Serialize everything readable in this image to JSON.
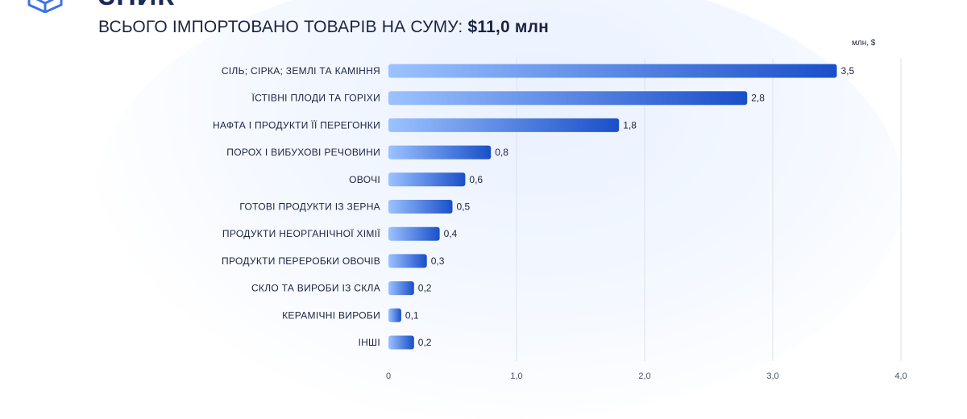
{
  "header": {
    "brand_fragment": "ЗНИК",
    "subtitle_prefix": "ВСЬОГО ІМПОРТОВАНО ТОВАРІВ НА СУМУ: ",
    "subtitle_amount": "$11,0 млн",
    "unit": "млн, $"
  },
  "colors": {
    "bar_start": "#9cc2ff",
    "bar_end": "#1a4fc9",
    "grid": "#dde3ee"
  },
  "chart_data": {
    "type": "bar",
    "orientation": "horizontal",
    "categories": [
      "СІЛЬ; СІРКА; ЗЕМЛІ ТА КАМІННЯ",
      "ЇСТІВНІ ПЛОДИ ТА ГОРІХИ",
      "НАФТА І ПРОДУКТИ ЇЇ ПЕРЕГОНКИ",
      "ПОРОХ І ВИБУХОВІ РЕЧОВИНИ",
      "ОВОЧІ",
      "ГОТОВІ ПРОДУКТИ ІЗ ЗЕРНА",
      "ПРОДУКТИ НЕОРГАНІЧНОЇ ХІМІЇ",
      "ПРОДУКТИ ПЕРЕРОБКИ ОВОЧІВ",
      "СКЛО ТА ВИРОБИ ІЗ СКЛА",
      "КЕРАМІЧНІ ВИРОБИ",
      "ІНШІ"
    ],
    "values": [
      3.5,
      2.8,
      1.8,
      0.8,
      0.6,
      0.5,
      0.4,
      0.3,
      0.2,
      0.1,
      0.2
    ],
    "value_labels": [
      "3,5",
      "2,8",
      "1,8",
      "0,8",
      "0,6",
      "0,5",
      "0,4",
      "0,3",
      "0,2",
      "0,1",
      "0,2"
    ],
    "xlim": [
      0,
      4
    ],
    "x_ticks": [
      0,
      1,
      2,
      3,
      4
    ],
    "x_tick_labels": [
      "0",
      "1,0",
      "2,0",
      "3,0",
      "4,0"
    ],
    "grid": true
  }
}
